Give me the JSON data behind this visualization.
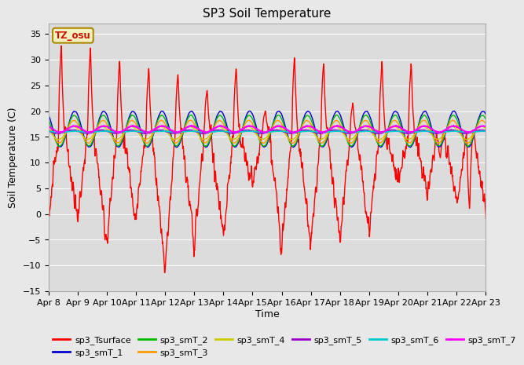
{
  "title": "SP3 Soil Temperature",
  "ylabel": "Soil Temperature (C)",
  "xlabel": "Time",
  "timezone_label": "TZ_osu",
  "ylim": [
    -15,
    37
  ],
  "yticks": [
    -15,
    -10,
    -5,
    0,
    5,
    10,
    15,
    20,
    25,
    30,
    35
  ],
  "fig_facecolor": "#e8e8e8",
  "plot_bg_color": "#dcdcdc",
  "series": [
    {
      "label": "sp3_Tsurface",
      "color": "#ff0000",
      "lw": 1.0
    },
    {
      "label": "sp3_smT_1",
      "color": "#0000cc",
      "lw": 1.0
    },
    {
      "label": "sp3_smT_2",
      "color": "#00bb00",
      "lw": 1.0
    },
    {
      "label": "sp3_smT_3",
      "color": "#ff9900",
      "lw": 1.0
    },
    {
      "label": "sp3_smT_4",
      "color": "#cccc00",
      "lw": 1.0
    },
    {
      "label": "sp3_smT_5",
      "color": "#9900cc",
      "lw": 1.2
    },
    {
      "label": "sp3_smT_6",
      "color": "#00cccc",
      "lw": 1.2
    },
    {
      "label": "sp3_smT_7",
      "color": "#ff00ff",
      "lw": 1.5
    }
  ],
  "x_tick_labels": [
    "Apr 8",
    "Apr 9",
    "Apr 10",
    "Apr 11",
    "Apr 12",
    "Apr 13",
    "Apr 14",
    "Apr 15",
    "Apr 16",
    "Apr 17",
    "Apr 18",
    "Apr 19",
    "Apr 20",
    "Apr 21",
    "Apr 22",
    "Apr 23"
  ],
  "legend_ncol_row1": 6,
  "legend_ncol_row2": 2
}
